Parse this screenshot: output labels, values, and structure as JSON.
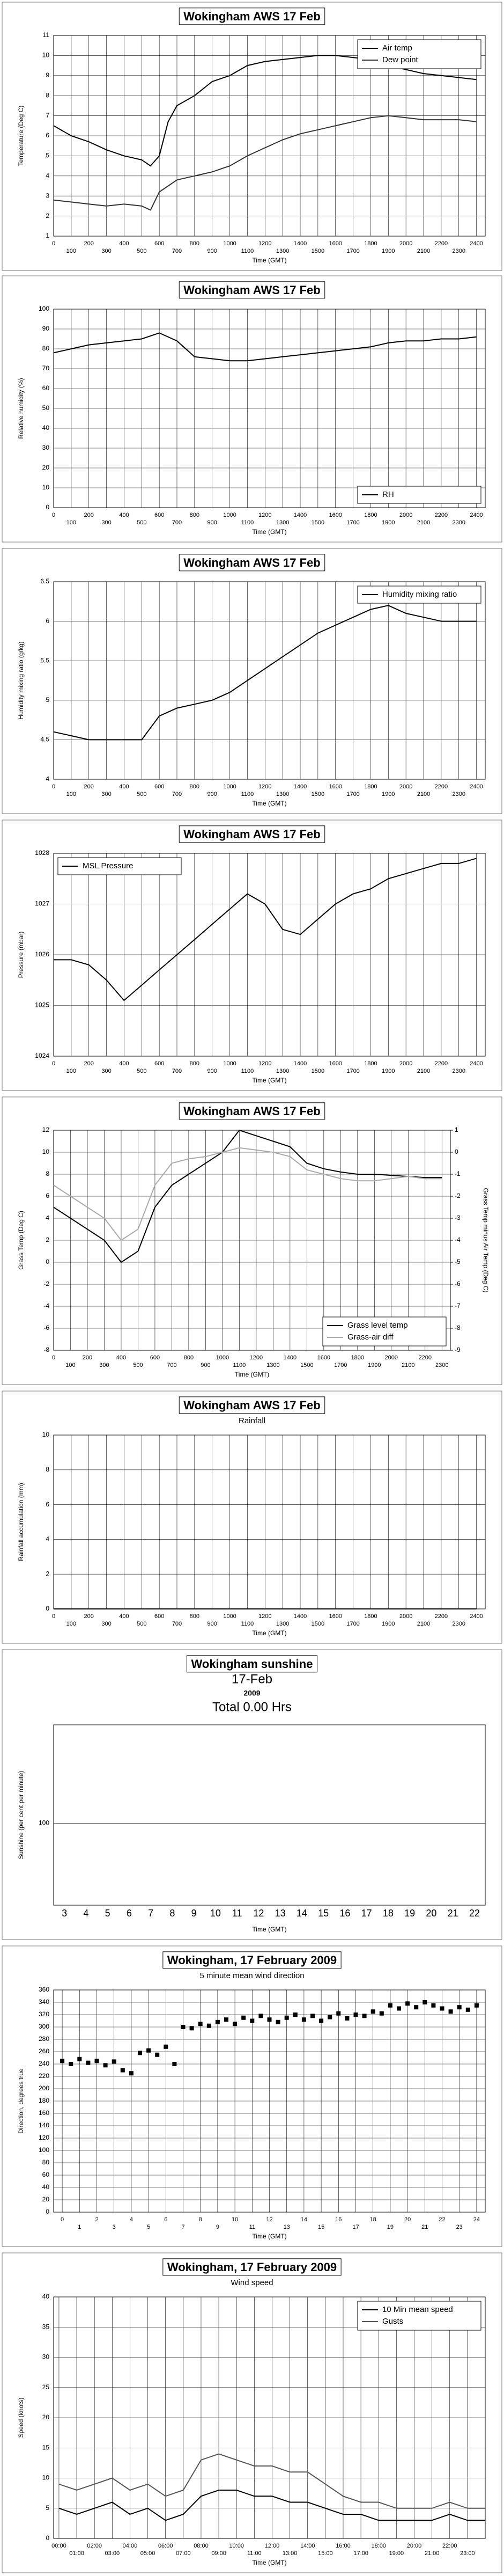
{
  "chart_data": [
    {
      "type": "line",
      "title": "Wokingham AWS 17 Feb",
      "xlabel": "Time (GMT)",
      "ylabel": "Temperature (Deg C)",
      "x": [
        0,
        100,
        200,
        300,
        400,
        500,
        550,
        600,
        650,
        700,
        800,
        900,
        1000,
        1100,
        1200,
        1300,
        1400,
        1500,
        1600,
        1700,
        1800,
        1900,
        2000,
        2100,
        2200,
        2300,
        2400
      ],
      "series": [
        {
          "name": "Air temp",
          "color": "#000000",
          "values": [
            6.5,
            6.0,
            5.7,
            5.3,
            5.0,
            4.8,
            4.5,
            5.0,
            6.7,
            7.5,
            8.0,
            8.7,
            9.0,
            9.5,
            9.7,
            9.8,
            9.9,
            10.0,
            10.0,
            9.9,
            9.8,
            9.5,
            9.3,
            9.1,
            9.0,
            8.9,
            8.8
          ]
        },
        {
          "name": "Dew point",
          "color": "#333333",
          "values": [
            2.8,
            2.7,
            2.6,
            2.5,
            2.6,
            2.5,
            2.3,
            3.2,
            3.5,
            3.8,
            4.0,
            4.2,
            4.5,
            5.0,
            5.4,
            5.8,
            6.1,
            6.3,
            6.5,
            6.7,
            6.9,
            7.0,
            6.9,
            6.8,
            6.8,
            6.8,
            6.7
          ]
        }
      ],
      "xlim": [
        0,
        2450
      ],
      "xticks": [
        0,
        100,
        200,
        300,
        400,
        500,
        600,
        700,
        800,
        900,
        1000,
        1100,
        1200,
        1300,
        1400,
        1500,
        1600,
        1700,
        1800,
        1900,
        2000,
        2100,
        2200,
        2300,
        2400
      ],
      "ylim": [
        1,
        11
      ],
      "yticks": [
        1,
        2,
        3,
        4,
        5,
        6,
        7,
        8,
        9,
        10,
        11
      ],
      "grid": true,
      "legend": "upper right"
    },
    {
      "type": "line",
      "title": "Wokingham AWS 17 Feb",
      "xlabel": "Time (GMT)",
      "ylabel": "Relative humidity (%)",
      "x": [
        0,
        100,
        200,
        300,
        400,
        500,
        600,
        700,
        800,
        900,
        1000,
        1100,
        1200,
        1300,
        1400,
        1500,
        1600,
        1700,
        1800,
        1900,
        2000,
        2100,
        2200,
        2300,
        2400
      ],
      "series": [
        {
          "name": "RH",
          "color": "#000000",
          "values": [
            78,
            80,
            82,
            83,
            84,
            85,
            88,
            84,
            76,
            75,
            74,
            74,
            75,
            76,
            77,
            78,
            79,
            80,
            81,
            83,
            84,
            84,
            85,
            85,
            86
          ]
        }
      ],
      "xlim": [
        0,
        2450
      ],
      "xticks": [
        0,
        100,
        200,
        300,
        400,
        500,
        600,
        700,
        800,
        900,
        1000,
        1100,
        1200,
        1300,
        1400,
        1500,
        1600,
        1700,
        1800,
        1900,
        2000,
        2100,
        2200,
        2300,
        2400
      ],
      "ylim": [
        0,
        100
      ],
      "yticks": [
        0,
        10,
        20,
        30,
        40,
        50,
        60,
        70,
        80,
        90,
        100
      ],
      "grid": true,
      "legend": "lower right"
    },
    {
      "type": "line",
      "title": "Wokingham AWS 17 Feb",
      "xlabel": "Time (GMT)",
      "ylabel": "Humidity mixing ratio (g/kg)",
      "x": [
        0,
        100,
        200,
        300,
        400,
        500,
        600,
        700,
        800,
        900,
        1000,
        1100,
        1200,
        1300,
        1400,
        1500,
        1600,
        1700,
        1800,
        1900,
        2000,
        2100,
        2200,
        2300,
        2400
      ],
      "series": [
        {
          "name": "Humidity mixing ratio",
          "color": "#000000",
          "values": [
            4.6,
            4.55,
            4.5,
            4.5,
            4.5,
            4.5,
            4.8,
            4.9,
            4.95,
            5.0,
            5.1,
            5.25,
            5.4,
            5.55,
            5.7,
            5.85,
            5.95,
            6.05,
            6.15,
            6.2,
            6.1,
            6.05,
            6.0,
            6.0,
            6.0
          ]
        }
      ],
      "xlim": [
        0,
        2450
      ],
      "xticks": [
        0,
        100,
        200,
        300,
        400,
        500,
        600,
        700,
        800,
        900,
        1000,
        1100,
        1200,
        1300,
        1400,
        1500,
        1600,
        1700,
        1800,
        1900,
        2000,
        2100,
        2200,
        2300,
        2400
      ],
      "ylim": [
        4,
        6.5
      ],
      "yticks": [
        4,
        4.5,
        5,
        5.5,
        6,
        6.5
      ],
      "grid": true,
      "legend": "upper right"
    },
    {
      "type": "line",
      "title": "Wokingham AWS 17 Feb",
      "xlabel": "Time (GMT)",
      "ylabel": "Pressure (mbar)",
      "x": [
        0,
        100,
        200,
        300,
        400,
        500,
        600,
        700,
        800,
        900,
        1000,
        1100,
        1200,
        1300,
        1400,
        1500,
        1600,
        1700,
        1800,
        1900,
        2000,
        2100,
        2200,
        2300,
        2400
      ],
      "series": [
        {
          "name": "MSL Pressure",
          "color": "#000000",
          "values": [
            1025.9,
            1025.9,
            1025.8,
            1025.5,
            1025.1,
            1025.4,
            1025.7,
            1026.0,
            1026.3,
            1026.6,
            1026.9,
            1027.2,
            1027.0,
            1026.5,
            1026.4,
            1026.7,
            1027.0,
            1027.2,
            1027.3,
            1027.5,
            1027.6,
            1027.7,
            1027.8,
            1027.8,
            1027.9
          ]
        }
      ],
      "xlim": [
        0,
        2450
      ],
      "xticks": [
        0,
        100,
        200,
        300,
        400,
        500,
        600,
        700,
        800,
        900,
        1000,
        1100,
        1200,
        1300,
        1400,
        1500,
        1600,
        1700,
        1800,
        1900,
        2000,
        2100,
        2200,
        2300,
        2400
      ],
      "ylim": [
        1024,
        1028
      ],
      "yticks": [
        1024,
        1025,
        1026,
        1027,
        1028
      ],
      "grid": true,
      "legend": "upper left"
    },
    {
      "type": "line",
      "title": "Wokingham AWS 17 Feb",
      "xlabel": "Time (GMT)",
      "ylabel": "Grass Temp (Deg C)",
      "y2label": "Grass Temp minus Air Temp (Deg C)",
      "x": [
        0,
        100,
        200,
        300,
        400,
        500,
        600,
        700,
        800,
        900,
        1000,
        1100,
        1200,
        1300,
        1400,
        1500,
        1600,
        1700,
        1800,
        1900,
        2000,
        2100,
        2200,
        2300
      ],
      "series": [
        {
          "name": "Grass level temp",
          "color": "#000000",
          "values": [
            5,
            4,
            3,
            2,
            0,
            1,
            5,
            7,
            8,
            9,
            10,
            12,
            11.5,
            11,
            10.5,
            9,
            8.5,
            8.2,
            8,
            8,
            7.9,
            7.8,
            7.7,
            7.7
          ]
        },
        {
          "name": "Grass-air diff",
          "color": "#aaaaaa",
          "axis": "y2",
          "values": [
            -1.5,
            -2,
            -2.5,
            -3,
            -4,
            -3.5,
            -1.5,
            -0.5,
            -0.3,
            -0.2,
            0,
            0.2,
            0.1,
            0,
            -0.2,
            -0.8,
            -1,
            -1.2,
            -1.3,
            -1.3,
            -1.2,
            -1.1,
            -1.2,
            -1.2
          ]
        }
      ],
      "xlim": [
        0,
        2350
      ],
      "xticks": [
        0,
        100,
        200,
        300,
        400,
        500,
        600,
        700,
        800,
        900,
        1000,
        1100,
        1200,
        1300,
        1400,
        1500,
        1600,
        1700,
        1800,
        1900,
        2000,
        2100,
        2200,
        2300
      ],
      "ylim": [
        -8,
        12
      ],
      "yticks": [
        -8,
        -6,
        -4,
        -2,
        0,
        2,
        4,
        6,
        8,
        10,
        12
      ],
      "y2lim": [
        -9,
        1
      ],
      "y2ticks": [
        -9,
        -8,
        -7,
        -6,
        -5,
        -4,
        -3,
        -2,
        -1,
        0,
        1
      ],
      "grid": true,
      "legend": "lower right"
    },
    {
      "type": "line",
      "title": "Wokingham AWS 17 Feb",
      "subtitle": "Rainfall",
      "xlabel": "Time (GMT)",
      "ylabel": "Rainfall accumulation (mm)",
      "x": [
        0,
        2400
      ],
      "values": [
        0,
        0
      ],
      "color": "#000000",
      "xlim": [
        0,
        2450
      ],
      "xticks": [
        0,
        100,
        200,
        300,
        400,
        500,
        600,
        700,
        800,
        900,
        1000,
        1100,
        1200,
        1300,
        1400,
        1500,
        1600,
        1700,
        1800,
        1900,
        2000,
        2100,
        2200,
        2300,
        2400
      ],
      "ylim": [
        0,
        10
      ],
      "yticks": [
        0,
        2,
        4,
        6,
        8,
        10
      ],
      "grid": true
    },
    {
      "type": "bar",
      "title": "Wokingham sunshine",
      "annotations": [
        "17-Feb",
        "2009",
        "Total 0.00 Hrs"
      ],
      "xlabel": "Time (GMT)",
      "ylabel": "Sunshine (per cent per minute)",
      "categories": [
        "3",
        "4",
        "5",
        "6",
        "7",
        "8",
        "9",
        "10",
        "11",
        "12",
        "13",
        "14",
        "15",
        "16",
        "17",
        "18",
        "19",
        "20",
        "21",
        "22"
      ],
      "values": [
        0,
        0,
        0,
        0,
        0,
        0,
        0,
        0,
        0,
        0,
        0,
        0,
        0,
        0,
        0,
        0,
        0,
        0,
        0,
        0
      ],
      "color": "#000000",
      "ylim": [
        0,
        220
      ],
      "yticks": [
        100
      ],
      "grid": true
    },
    {
      "type": "scatter",
      "title": "Wokingham,  17 February 2009",
      "subtitle": "5 minute mean wind direction",
      "xlabel": "Time (GMT)",
      "ylabel": "Direction, degrees true",
      "x": [
        0,
        0.5,
        1,
        1.5,
        2,
        2.5,
        3,
        3.5,
        4,
        4.5,
        5,
        5.5,
        6,
        6.5,
        7,
        7.5,
        8,
        8.5,
        9,
        9.5,
        10,
        10.5,
        11,
        11.5,
        12,
        12.5,
        13,
        13.5,
        14,
        14.5,
        15,
        15.5,
        16,
        16.5,
        17,
        17.5,
        18,
        18.5,
        19,
        19.5,
        20,
        20.5,
        21,
        21.5,
        22,
        22.5,
        23,
        23.5,
        24
      ],
      "values": [
        245,
        240,
        248,
        242,
        245,
        238,
        244,
        230,
        225,
        258,
        262,
        255,
        268,
        240,
        300,
        298,
        305,
        302,
        308,
        312,
        305,
        315,
        310,
        318,
        312,
        308,
        315,
        320,
        312,
        318,
        310,
        316,
        322,
        314,
        320,
        318,
        325,
        322,
        335,
        330,
        338,
        332,
        340,
        335,
        330,
        325,
        332,
        328,
        335
      ],
      "color": "#000000",
      "xlim": [
        -0.5,
        24.5
      ],
      "xticks": [
        0,
        1,
        2,
        3,
        4,
        5,
        6,
        7,
        8,
        9,
        10,
        11,
        12,
        13,
        14,
        15,
        16,
        17,
        18,
        19,
        20,
        21,
        22,
        23,
        24
      ],
      "ylim": [
        0,
        360
      ],
      "yticks": [
        0,
        20,
        40,
        60,
        80,
        100,
        120,
        140,
        160,
        180,
        200,
        220,
        240,
        260,
        280,
        300,
        320,
        340,
        360
      ],
      "grid": true
    },
    {
      "type": "line",
      "title": "Wokingham,  17 February 2009",
      "subtitle": "Wind speed",
      "xlabel": "Time (GMT)",
      "ylabel": "Speed (knots)",
      "x": [
        0,
        1,
        2,
        3,
        4,
        5,
        6,
        7,
        8,
        9,
        10,
        11,
        12,
        13,
        14,
        15,
        16,
        17,
        18,
        19,
        20,
        21,
        22,
        23,
        24
      ],
      "series": [
        {
          "name": "10 Min mean speed",
          "color": "#000000",
          "values": [
            5,
            4,
            5,
            6,
            4,
            5,
            3,
            4,
            7,
            8,
            8,
            7,
            7,
            6,
            6,
            5,
            4,
            4,
            3,
            3,
            3,
            3,
            4,
            3,
            3
          ]
        },
        {
          "name": "Gusts",
          "color": "#555555",
          "values": [
            9,
            8,
            9,
            10,
            8,
            9,
            7,
            8,
            13,
            14,
            13,
            12,
            12,
            11,
            11,
            9,
            7,
            6,
            6,
            5,
            5,
            5,
            6,
            5,
            5
          ]
        }
      ],
      "xlim": [
        -0.3,
        24
      ],
      "xticks": [
        {
          "value": 0,
          "label": "00:00"
        },
        {
          "value": 1,
          "label": "01:00"
        },
        {
          "value": 2,
          "label": "02:00"
        },
        {
          "value": 3,
          "label": "03:00"
        },
        {
          "value": 4,
          "label": "04:00"
        },
        {
          "value": 5,
          "label": "05:00"
        },
        {
          "value": 6,
          "label": "06:00"
        },
        {
          "value": 7,
          "label": "07:00"
        },
        {
          "value": 8,
          "label": "08:00"
        },
        {
          "value": 9,
          "label": "09:00"
        },
        {
          "value": 10,
          "label": "10:00"
        },
        {
          "value": 11,
          "label": "11:00"
        },
        {
          "value": 12,
          "label": "12:00"
        },
        {
          "value": 13,
          "label": "13:00"
        },
        {
          "value": 14,
          "label": "14:00"
        },
        {
          "value": 15,
          "label": "15:00"
        },
        {
          "value": 16,
          "label": "16:00"
        },
        {
          "value": 17,
          "label": "17:00"
        },
        {
          "value": 18,
          "label": "18:00"
        },
        {
          "value": 19,
          "label": "19:00"
        },
        {
          "value": 20,
          "label": "20:00"
        },
        {
          "value": 21,
          "label": "21:00"
        },
        {
          "value": 22,
          "label": "22:00"
        },
        {
          "value": 23,
          "label": "23:00"
        }
      ],
      "ylim": [
        0,
        40
      ],
      "yticks": [
        0,
        5,
        10,
        15,
        20,
        25,
        30,
        35,
        40
      ],
      "grid": true,
      "legend": "upper right"
    }
  ]
}
